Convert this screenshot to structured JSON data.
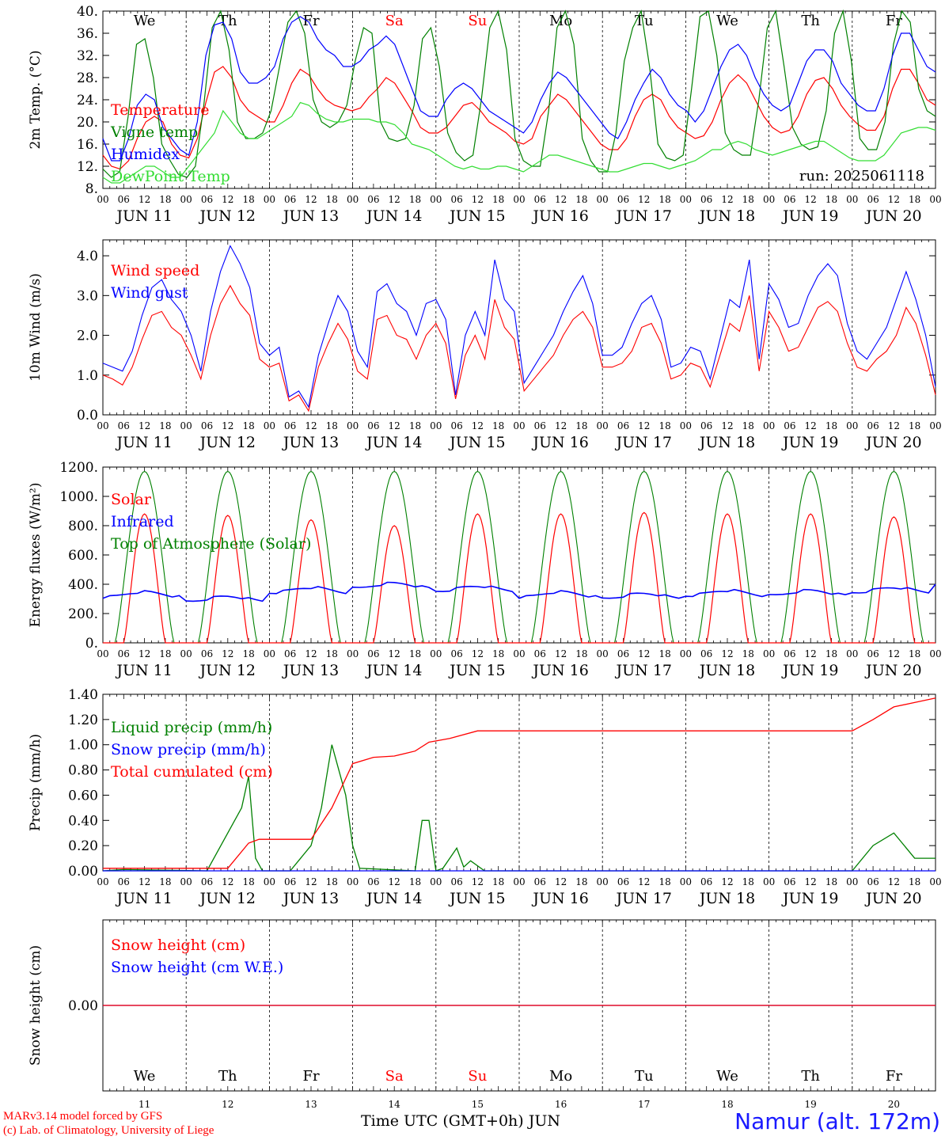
{
  "run_label": "run: 2025061118",
  "days": [
    "We",
    "Th",
    "Fr",
    "Sa",
    "Su",
    "Mo",
    "Tu",
    "We",
    "Th",
    "Fr"
  ],
  "weekend_color": "#ff0000",
  "date_labels": [
    "JUN 11",
    "JUN 12",
    "JUN 13",
    "JUN 14",
    "JUN 15",
    "JUN 16",
    "JUN 17",
    "JUN 18",
    "JUN 19",
    "JUN 20"
  ],
  "hour_labels": [
    "00",
    "06",
    "12",
    "18"
  ],
  "bottom_day_numbers": [
    "11",
    "12",
    "13",
    "14",
    "15",
    "16",
    "17",
    "18",
    "19",
    "20"
  ],
  "x_axis_title": "Time UTC (GMT+0h)",
  "x_axis_month": "JUN",
  "credits": [
    "MARv3.14 model forced by GFS",
    "(c) Lab. of Climatology, University of Liege"
  ],
  "site": "Namur (alt. 172m)",
  "chart_data": [
    {
      "type": "line",
      "ylabel": "2m Temp. (°C)",
      "ylim": [
        8,
        40
      ],
      "yticks": [
        "8.",
        "12.",
        "16.",
        "20.",
        "24.",
        "28.",
        "32.",
        "36.",
        "40."
      ],
      "x": "hours since JUN 11 00 UTC, 0-240, 6-hourly",
      "series": [
        {
          "name": "Temperature",
          "color": "#ff0000",
          "values": [
            14,
            12,
            11.5,
            13,
            17,
            20,
            21,
            20,
            16,
            14,
            13.5,
            17,
            23.5,
            29,
            30,
            28,
            24,
            22,
            21,
            20,
            20,
            23,
            27,
            29.5,
            28.5,
            26,
            24,
            23,
            22.5,
            22,
            22.5,
            24.5,
            26,
            28,
            27,
            24.5,
            22,
            19,
            18,
            18,
            19,
            21,
            23,
            23.5,
            22,
            20,
            19,
            18,
            16.5,
            16,
            17,
            21,
            23,
            25,
            24,
            22,
            20,
            18,
            16,
            15,
            15,
            17,
            21,
            24,
            25,
            24,
            21,
            19,
            18,
            17,
            17.5,
            20,
            24,
            27,
            28.5,
            27,
            24,
            21,
            19,
            18,
            18.5,
            21,
            25,
            27.5,
            28,
            26,
            23,
            21,
            19.5,
            18.5,
            18.5,
            21,
            26,
            29.5,
            29.5,
            27,
            24,
            23
          ]
        },
        {
          "name": "Vigne temp",
          "color": "#008000",
          "values": [
            11.5,
            10,
            11,
            21,
            34,
            35,
            28,
            16,
            13,
            10.5,
            10,
            12,
            23,
            37,
            40,
            33,
            20,
            17,
            17,
            18,
            22,
            30,
            38,
            40,
            36,
            24,
            20,
            19,
            20,
            23,
            31,
            37,
            36,
            20,
            17,
            16.5,
            17,
            23,
            35,
            37,
            30,
            18,
            14.5,
            13,
            14,
            24,
            37,
            40,
            33,
            17,
            13,
            12,
            12,
            22,
            37,
            40,
            34,
            17,
            13,
            11,
            11,
            18,
            31,
            37,
            40,
            30,
            16,
            13.5,
            13,
            14,
            26,
            39,
            40,
            32,
            18,
            15,
            14,
            14,
            24,
            37,
            40,
            30,
            19,
            16,
            15,
            15.5,
            22,
            36,
            40,
            31,
            17,
            15,
            15,
            20,
            34,
            40,
            38,
            26,
            22,
            21
          ]
        },
        {
          "name": "Humidex",
          "color": "#0000ff",
          "values": [
            17,
            13,
            13,
            17,
            23,
            25,
            24,
            19,
            17,
            15,
            14,
            20,
            32,
            37.5,
            38,
            35,
            29,
            27,
            27,
            28,
            30,
            35,
            38,
            39,
            38,
            35,
            33,
            32,
            30,
            30,
            31,
            33,
            34,
            35.5,
            34,
            30,
            26,
            22,
            21,
            21,
            24,
            26,
            27,
            26,
            24,
            22,
            21,
            20,
            19,
            18,
            20,
            24,
            27,
            29,
            28,
            26,
            24,
            22,
            20,
            18,
            17,
            20,
            24,
            27,
            29.5,
            28,
            25,
            23,
            22,
            20,
            22,
            26,
            30,
            33,
            34,
            32,
            28,
            25,
            23,
            22,
            23,
            27,
            31,
            33,
            33,
            31,
            27,
            25,
            23,
            22,
            22,
            26,
            32,
            36,
            36,
            33,
            30,
            29
          ]
        },
        {
          "name": "DewPoint Temp",
          "color": "#33dd33",
          "values": [
            10,
            9,
            9,
            10,
            11,
            12,
            12,
            11,
            10,
            10,
            12,
            14,
            16,
            18,
            22,
            20,
            18,
            17,
            17,
            18,
            19,
            20,
            21,
            23.5,
            23,
            21.5,
            20.5,
            20,
            20,
            20.5,
            20.5,
            20.5,
            20,
            20,
            19.5,
            18,
            16,
            15.5,
            15,
            14,
            13,
            12,
            11.5,
            12,
            11.5,
            11.5,
            12,
            12,
            11.5,
            11,
            12,
            13,
            14,
            14,
            13.5,
            13,
            12.5,
            12,
            11.5,
            11,
            11,
            11.5,
            12,
            12.5,
            12.5,
            12,
            11.5,
            12,
            12.5,
            13,
            14,
            15,
            15,
            16,
            16.5,
            16,
            15,
            14.5,
            14,
            14.5,
            15,
            15.5,
            16,
            16.5,
            16.5,
            15.5,
            14.5,
            13.5,
            13,
            13,
            13,
            14,
            16,
            18,
            18.5,
            19,
            19,
            18.5
          ]
        }
      ]
    },
    {
      "type": "line",
      "ylabel": "10m Wind (m/s)",
      "ylim": [
        0,
        4.4
      ],
      "yticks": [
        "0.0",
        "1.0",
        "2.0",
        "3.0",
        "4.0"
      ],
      "x": "hours since JUN 11 00 UTC, 0-240, 6-hourly",
      "series": [
        {
          "name": "Wind speed",
          "color": "#ff0000",
          "values": [
            1.0,
            0.9,
            0.75,
            1.2,
            1.9,
            2.5,
            2.6,
            2.2,
            2.0,
            1.5,
            0.9,
            2.0,
            2.8,
            3.25,
            2.8,
            2.5,
            1.4,
            1.2,
            1.3,
            0.35,
            0.5,
            0.1,
            1.2,
            1.8,
            2.3,
            1.9,
            1.1,
            0.9,
            2.4,
            2.5,
            2.0,
            1.9,
            1.4,
            2.0,
            2.3,
            1.8,
            0.4,
            1.5,
            2.0,
            1.4,
            2.9,
            2.2,
            1.9,
            0.6,
            0.9,
            1.2,
            1.5,
            2.0,
            2.4,
            2.6,
            2.2,
            1.2,
            1.2,
            1.3,
            1.6,
            2.2,
            2.3,
            1.8,
            0.9,
            1.0,
            1.3,
            1.2,
            0.7,
            1.5,
            2.3,
            2.1,
            3.0,
            1.1,
            2.6,
            2.2,
            1.6,
            1.7,
            2.2,
            2.7,
            2.85,
            2.6,
            1.8,
            1.2,
            1.1,
            1.4,
            1.6,
            2.0,
            2.7,
            2.3,
            1.5,
            0.5
          ]
        },
        {
          "name": "Wind gust",
          "color": "#0000ff",
          "values": [
            1.3,
            1.2,
            1.1,
            1.6,
            2.5,
            3.2,
            3.4,
            2.9,
            2.6,
            2.0,
            1.1,
            2.6,
            3.6,
            4.25,
            3.8,
            3.2,
            1.8,
            1.5,
            1.7,
            0.45,
            0.6,
            0.2,
            1.5,
            2.3,
            3.0,
            2.6,
            1.6,
            1.2,
            3.1,
            3.3,
            2.8,
            2.6,
            2.0,
            2.8,
            2.9,
            2.4,
            0.5,
            2.0,
            2.6,
            2.0,
            3.9,
            2.9,
            2.6,
            0.8,
            1.2,
            1.6,
            2.0,
            2.6,
            3.1,
            3.5,
            2.8,
            1.5,
            1.5,
            1.7,
            2.3,
            2.8,
            3.0,
            2.4,
            1.2,
            1.3,
            1.7,
            1.6,
            0.9,
            1.9,
            2.9,
            2.7,
            3.9,
            1.4,
            3.3,
            2.9,
            2.2,
            2.3,
            3.0,
            3.5,
            3.8,
            3.5,
            2.3,
            1.6,
            1.4,
            1.8,
            2.2,
            2.9,
            3.6,
            2.9,
            2.0,
            0.7
          ]
        }
      ]
    },
    {
      "type": "line",
      "ylabel": "Energy fluxes (W/m²)",
      "ylim": [
        0,
        1200
      ],
      "yticks": [
        "0.",
        "200.",
        "400.",
        "600.",
        "800.",
        "1000.",
        "1200."
      ],
      "x": "day JUN 11-20, daily curves peaking near 12 UTC",
      "series": [
        {
          "name": "Solar",
          "color": "#ff0000",
          "daily_peaks": [
            880,
            870,
            840,
            800,
            880,
            880,
            890,
            880,
            880,
            860
          ]
        },
        {
          "name": "Infrared",
          "color": "#0000ff",
          "daily_mean": [
            330,
            300,
            360,
            390,
            370,
            330,
            320,
            340,
            340,
            360
          ]
        },
        {
          "name": "Top of Atmosphere (Solar)",
          "color": "#008000",
          "daily_peaks": [
            1170,
            1170,
            1170,
            1170,
            1170,
            1170,
            1170,
            1170,
            1170,
            1170
          ]
        }
      ]
    },
    {
      "type": "line",
      "ylabel": "Precip (mm/h)",
      "ylim": [
        0,
        1.4
      ],
      "yticks": [
        "0.00",
        "0.20",
        "0.40",
        "0.60",
        "0.80",
        "1.00",
        "1.20",
        "1.40"
      ],
      "x": "hours since JUN 11 00 UTC",
      "series": [
        {
          "name": "Liquid precip (mm/h)",
          "color": "#008000",
          "points": [
            [
              0,
              0
            ],
            [
              6,
              0.01
            ],
            [
              30,
              0
            ],
            [
              36,
              0.3
            ],
            [
              40,
              0.5
            ],
            [
              42,
              0.75
            ],
            [
              44,
              0.1
            ],
            [
              46,
              0
            ],
            [
              54,
              0
            ],
            [
              60,
              0.2
            ],
            [
              63,
              0.5
            ],
            [
              66,
              1.0
            ],
            [
              70,
              0.6
            ],
            [
              72,
              0.2
            ],
            [
              74,
              0.02
            ],
            [
              90,
              0
            ],
            [
              92,
              0.4
            ],
            [
              94,
              0.4
            ],
            [
              96,
              0
            ],
            [
              98,
              0.02
            ],
            [
              102,
              0.18
            ],
            [
              104,
              0.03
            ],
            [
              106,
              0.08
            ],
            [
              110,
              0
            ],
            [
              216,
              0
            ],
            [
              222,
              0.2
            ],
            [
              228,
              0.3
            ],
            [
              234,
              0.1
            ],
            [
              240,
              0.1
            ]
          ]
        },
        {
          "name": "Snow precip (mm/h)",
          "color": "#0000ff",
          "points": [
            [
              0,
              0
            ],
            [
              240,
              0
            ]
          ]
        },
        {
          "name": "Total cumulated (cm)",
          "color": "#ff0000",
          "points": [
            [
              0,
              0.02
            ],
            [
              36,
              0.02
            ],
            [
              42,
              0.22
            ],
            [
              45,
              0.25
            ],
            [
              60,
              0.25
            ],
            [
              66,
              0.5
            ],
            [
              72,
              0.85
            ],
            [
              78,
              0.9
            ],
            [
              84,
              0.91
            ],
            [
              90,
              0.95
            ],
            [
              94,
              1.02
            ],
            [
              100,
              1.05
            ],
            [
              108,
              1.11
            ],
            [
              216,
              1.11
            ],
            [
              222,
              1.2
            ],
            [
              228,
              1.3
            ],
            [
              240,
              1.37
            ]
          ]
        }
      ]
    },
    {
      "type": "line",
      "ylabel": "Snow height (cm)",
      "ylim": [
        -1,
        1
      ],
      "yticks": [
        "0.00"
      ],
      "series": [
        {
          "name": "Snow height (cm)",
          "color": "#ff0000",
          "points": [
            [
              0,
              0
            ],
            [
              240,
              0
            ]
          ]
        },
        {
          "name": "Snow height (cm W.E.)",
          "color": "#0000ff",
          "points": [
            [
              0,
              0
            ],
            [
              240,
              0
            ]
          ]
        }
      ]
    }
  ]
}
